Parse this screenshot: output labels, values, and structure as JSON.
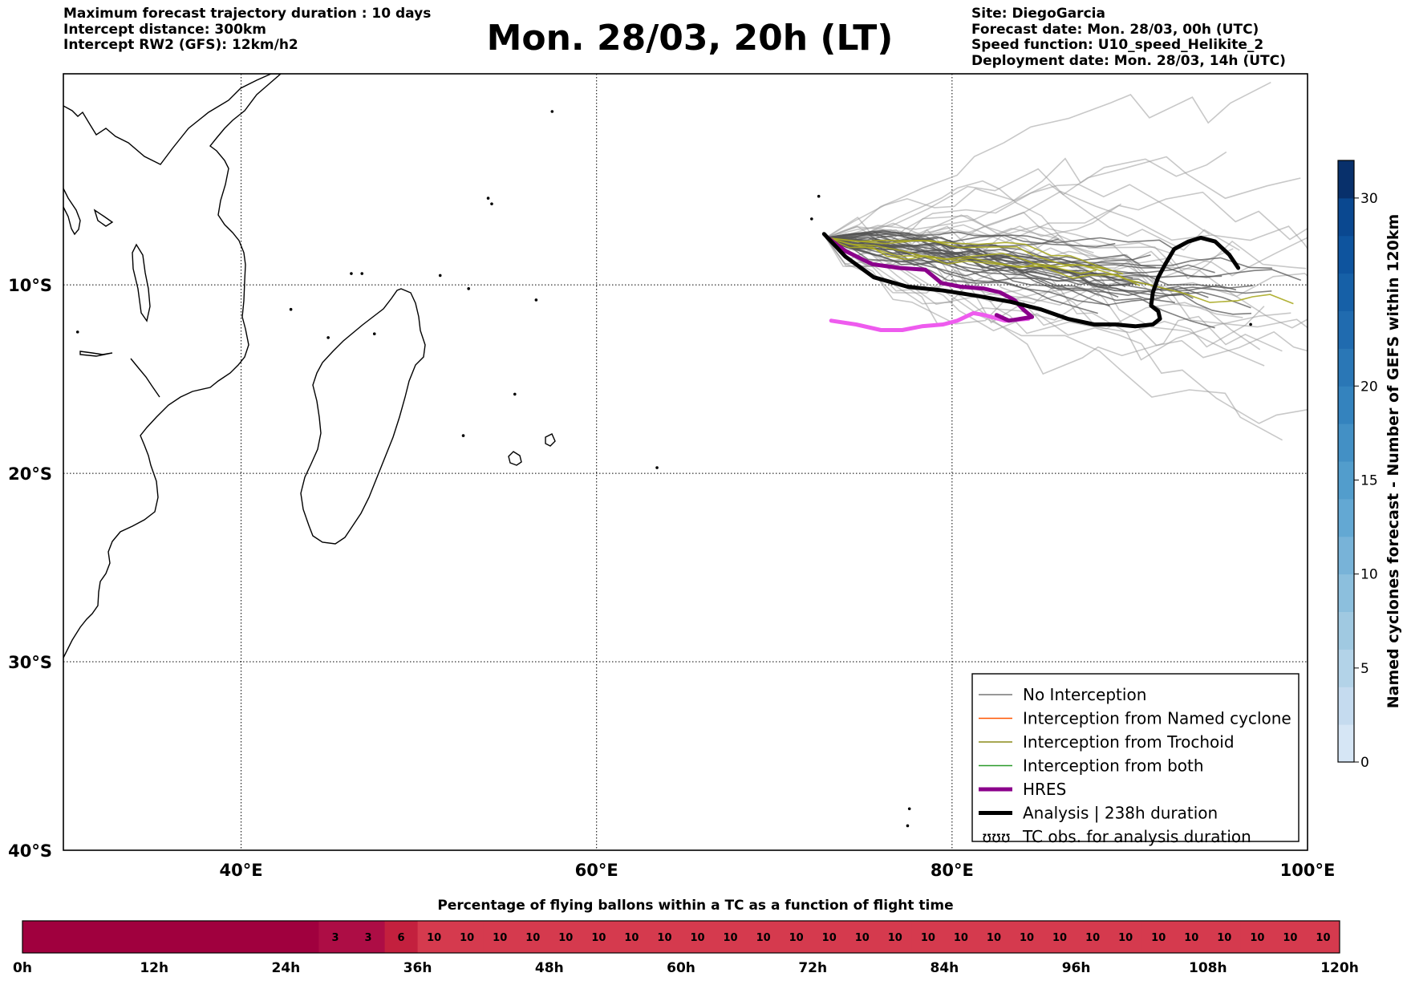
{
  "header": {
    "left": [
      "Maximum forecast trajectory duration : 10 days",
      "Intercept distance: 300km",
      "Intercept RW2 (GFS):  12km/h2"
    ],
    "title": "Mon. 28/03, 20h (LT)",
    "right": [
      "Site: DiegoGarcia",
      "Forecast date: Mon. 28/03, 00h (UTC)",
      "Speed function: U10_speed_Helikite_2",
      "Deployment date: Mon. 28/03, 14h (UTC)"
    ]
  },
  "map": {
    "lon_range": [
      30,
      100
    ],
    "lat_range": [
      -40,
      1.2
    ],
    "lon_ticks": [
      40,
      60,
      80,
      100
    ],
    "lon_tick_labels": [
      "40°E",
      "60°E",
      "80°E",
      "100°E"
    ],
    "lat_ticks": [
      -10,
      -20,
      -30,
      -40
    ],
    "lat_tick_labels": [
      "10°S",
      "20°S",
      "30°S",
      "40°S"
    ],
    "grid": true,
    "grid_style": "dotted",
    "legend_position": "bottom-right",
    "legend": [
      {
        "label": "No Interception",
        "color": "#777777",
        "style": "thin"
      },
      {
        "label": "Interception from Named cyclone",
        "color": "#ff5500",
        "style": "thin"
      },
      {
        "label": "Interception from Trochoid",
        "color": "#8b8b1a",
        "style": "thin"
      },
      {
        "label": "Interception from both",
        "color": "#2a9a2a",
        "style": "thin"
      },
      {
        "label": "HRES",
        "color": "#8b008b",
        "style": "thick"
      },
      {
        "label": "Analysis | 238h duration",
        "color": "#000000",
        "style": "thick"
      },
      {
        "label": "TC obs. for analysis duration",
        "color": "#000000",
        "style": "symbol",
        "symbol": "ʊʊʊ"
      }
    ],
    "tracks": {
      "hres": [
        [
          73.0,
          -7.5
        ],
        [
          74.0,
          -8.2
        ],
        [
          75.5,
          -8.9
        ],
        [
          77.0,
          -9.1
        ],
        [
          78.5,
          -9.2
        ],
        [
          79.4,
          -9.9
        ],
        [
          80.5,
          -10.1
        ],
        [
          81.8,
          -10.2
        ],
        [
          82.7,
          -10.4
        ],
        [
          83.5,
          -10.8
        ],
        [
          84.0,
          -11.3
        ],
        [
          84.5,
          -11.7
        ],
        [
          83.2,
          -11.9
        ],
        [
          82.5,
          -11.6
        ]
      ],
      "analysis": [
        [
          72.8,
          -7.3
        ],
        [
          74.0,
          -8.5
        ],
        [
          75.6,
          -9.6
        ],
        [
          77.5,
          -10.1
        ],
        [
          79.5,
          -10.3
        ],
        [
          81.5,
          -10.6
        ],
        [
          83.3,
          -10.9
        ],
        [
          85.0,
          -11.3
        ],
        [
          86.5,
          -11.8
        ],
        [
          88.0,
          -12.1
        ],
        [
          89.2,
          -12.1
        ],
        [
          90.3,
          -12.2
        ],
        [
          91.3,
          -12.1
        ],
        [
          91.7,
          -11.8
        ],
        [
          91.6,
          -11.4
        ],
        [
          91.2,
          -11.1
        ],
        [
          91.3,
          -10.4
        ],
        [
          91.6,
          -9.6
        ],
        [
          92.0,
          -8.9
        ],
        [
          92.5,
          -8.1
        ],
        [
          93.3,
          -7.7
        ],
        [
          94.0,
          -7.5
        ],
        [
          94.8,
          -7.7
        ],
        [
          95.6,
          -8.4
        ],
        [
          96.1,
          -9.1
        ]
      ],
      "magenta": [
        [
          73.2,
          -11.9
        ],
        [
          74.6,
          -12.1
        ],
        [
          76.0,
          -12.4
        ],
        [
          77.2,
          -12.4
        ],
        [
          78.3,
          -12.2
        ],
        [
          79.5,
          -12.1
        ],
        [
          80.3,
          -11.9
        ],
        [
          81.2,
          -11.5
        ],
        [
          81.8,
          -11.6
        ],
        [
          83.0,
          -11.9
        ],
        [
          84.3,
          -11.8
        ]
      ]
    },
    "colors": {
      "hres": "#8b008b",
      "analysis": "#000000",
      "magenta": "#ee5bee",
      "ensemble_grey": "#9a9a9a",
      "ensemble_dark": "#555555",
      "trochoid": "#aaaa22"
    }
  },
  "colorbar": {
    "label": "Named cyclones forecast - Number of GEFS within 120km",
    "ticks": [
      0,
      5,
      10,
      15,
      20,
      30
    ],
    "tick_labels": [
      "0",
      "5",
      "10",
      "15",
      "20",
      "30"
    ],
    "range": [
      0,
      32
    ],
    "colors": [
      "#d6e6f5",
      "#c5dbef",
      "#b3d3e8",
      "#a0c9e1",
      "#8cbfdd",
      "#78b3d8",
      "#63a8d3",
      "#529dcc",
      "#4390c5",
      "#3483be",
      "#2a77b6",
      "#206baf",
      "#1660a7",
      "#0e549e",
      "#0a4890",
      "#08306b"
    ]
  },
  "bottom_chart": {
    "title": "Percentage of flying ballons within a TC as a function of flight time",
    "x_range_hours": [
      0,
      120
    ],
    "x_ticks": [
      0,
      12,
      24,
      36,
      48,
      60,
      72,
      84,
      96,
      108,
      120
    ],
    "x_tick_labels": [
      "0h",
      "12h",
      "24h",
      "36h",
      "48h",
      "60h",
      "72h",
      "84h",
      "96h",
      "108h",
      "120h"
    ],
    "step_hours": 3,
    "values": [
      null,
      null,
      null,
      null,
      null,
      null,
      null,
      null,
      null,
      3,
      3,
      6,
      10,
      10,
      10,
      10,
      10,
      10,
      10,
      10,
      10,
      10,
      10,
      10,
      10,
      10,
      10,
      10,
      10,
      10,
      10,
      10,
      10,
      10,
      10,
      10,
      10,
      10,
      10,
      10
    ],
    "value_labels": [
      "",
      "",
      "",
      "",
      "",
      "",
      "",
      "",
      "",
      "3",
      "3",
      "6",
      "10",
      "10",
      "10",
      "10",
      "10",
      "10",
      "10",
      "10",
      "10",
      "10",
      "10",
      "10",
      "10",
      "10",
      "10",
      "10",
      "10",
      "10",
      "10",
      "10",
      "10",
      "10",
      "10",
      "10",
      "10",
      "10",
      "10",
      "10"
    ],
    "colors": {
      "empty": "#a0003e",
      "3": "#ad0d45",
      "6": "#c3203e",
      "10": "#d53a4e"
    }
  }
}
